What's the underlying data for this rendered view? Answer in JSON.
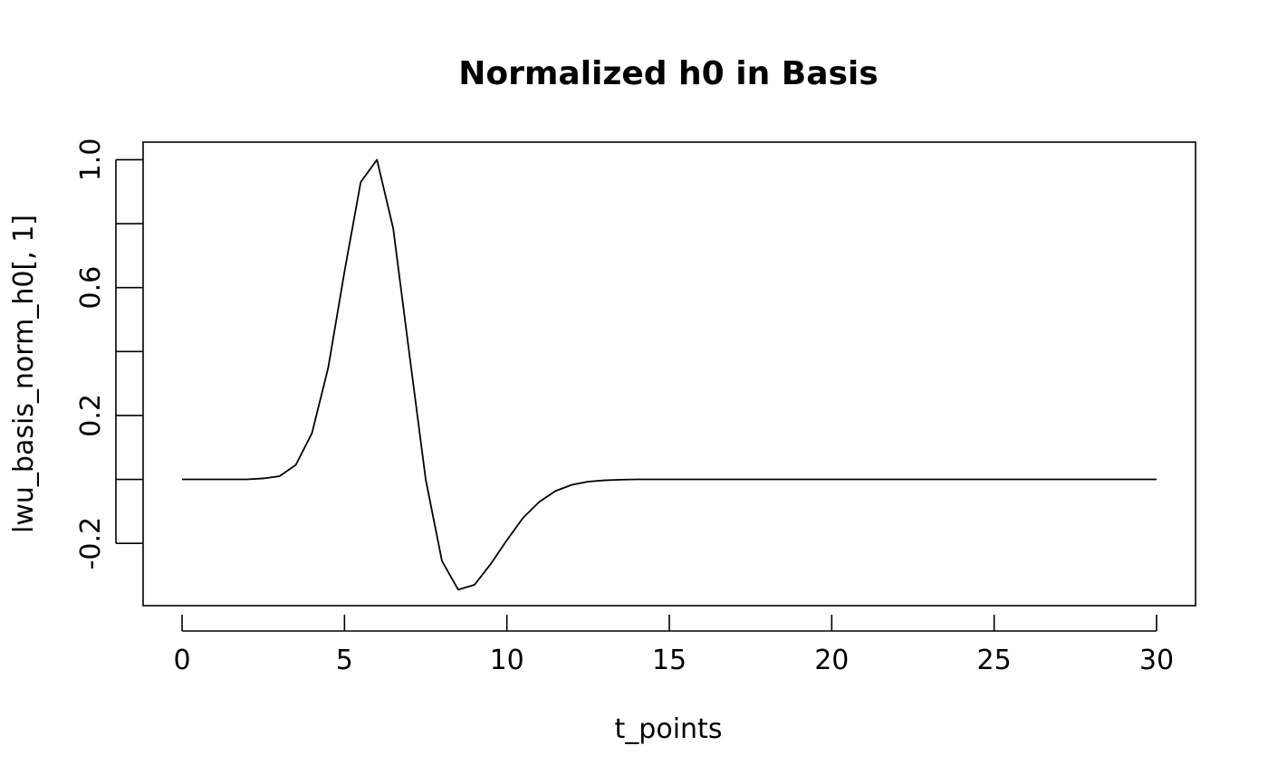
{
  "chart_data": {
    "type": "line",
    "title": "Normalized h0 in Basis",
    "xlabel": "t_points",
    "ylabel": "lwu_basis_norm_h0[, 1]",
    "xlim": [
      -1.2,
      31.2
    ],
    "ylim": [
      -0.395,
      1.055
    ],
    "x_ticks": [
      0,
      5,
      10,
      15,
      20,
      25,
      30
    ],
    "x_tick_labels": [
      "0",
      "5",
      "10",
      "15",
      "20",
      "25",
      "30"
    ],
    "y_ticks": [
      -0.2,
      0.0,
      0.2,
      0.4,
      0.6,
      0.8,
      1.0
    ],
    "y_tick_labels": [
      "-0.2",
      "",
      "0.2",
      "",
      "0.6",
      "",
      "1.0"
    ],
    "grid": false,
    "legend": "none",
    "line_color": "#000000",
    "series": [
      {
        "x": [
          0,
          0.5,
          1,
          1.5,
          2,
          2.5,
          3,
          3.5,
          4,
          4.5,
          5,
          5.5,
          6,
          6.5,
          7,
          7.5,
          8,
          8.5,
          9,
          9.5,
          10,
          10.5,
          11,
          11.5,
          12,
          12.5,
          13,
          13.5,
          14,
          14.5,
          15,
          15.5,
          16,
          16.5,
          17,
          17.5,
          18,
          18.5,
          19,
          19.5,
          20,
          20.5,
          21,
          21.5,
          22,
          22.5,
          23,
          23.5,
          24,
          24.5,
          25,
          25.5,
          26,
          26.5,
          27,
          27.5,
          28,
          28.5,
          29,
          29.5,
          30
        ],
        "values": [
          0.0,
          0.0,
          0.0,
          0.0,
          0.0,
          0.003,
          0.01,
          0.045,
          0.145,
          0.35,
          0.65,
          0.93,
          1.0,
          0.785,
          0.39,
          0.0,
          -0.255,
          -0.345,
          -0.33,
          -0.265,
          -0.19,
          -0.12,
          -0.07,
          -0.036,
          -0.017,
          -0.007,
          -0.003,
          -0.001,
          0.0,
          0.0,
          0.0,
          0.0,
          0.0,
          0.0,
          0.0,
          0.0,
          0.0,
          0.0,
          0.0,
          0.0,
          0.0,
          0.0,
          0.0,
          0.0,
          0.0,
          0.0,
          0.0,
          0.0,
          0.0,
          0.0,
          0.0,
          0.0,
          0.0,
          0.0,
          0.0,
          0.0,
          0.0,
          0.0,
          0.0,
          0.0,
          0.0
        ]
      }
    ]
  }
}
